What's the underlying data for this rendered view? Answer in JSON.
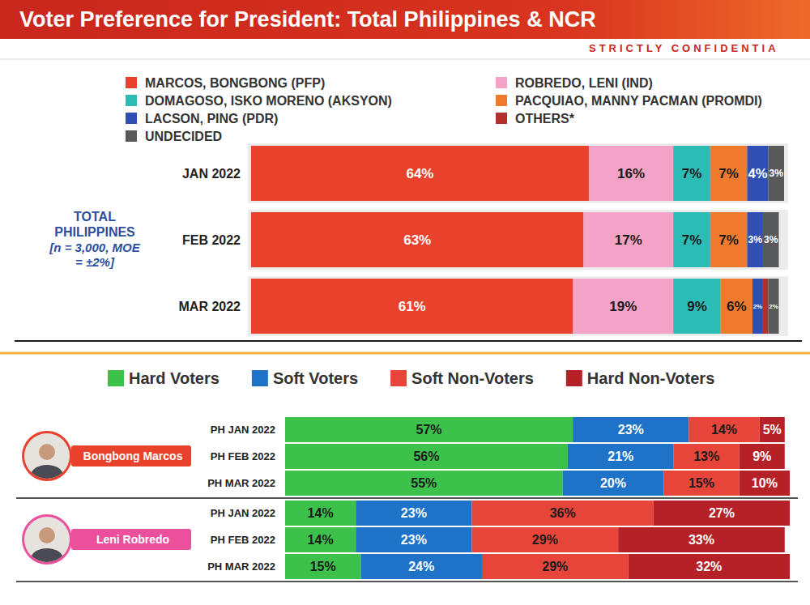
{
  "chart_data": [
    {
      "type": "bar",
      "orientation": "horizontal",
      "stacked": true,
      "data_labels": true,
      "legend": "top",
      "tick_labels": "y",
      "title": "Voter Preference for President: Total Philippines & NCR",
      "subtitle": "STRICTLY CONFIDENTIA",
      "annotations": [
        "TOTAL PHILIPPINES",
        "[n = 3,000, MOE = ±2%]"
      ],
      "categories": [
        "JAN 2022",
        "FEB 2022",
        "MAR 2022"
      ],
      "xlim": [
        0,
        101
      ],
      "series": [
        {
          "name": "MARCOS, BONGBONG (PFP)",
          "color": "#e8412c",
          "values": [
            64,
            63,
            61
          ],
          "value_labels": [
            "64%",
            "63%",
            "61%"
          ]
        },
        {
          "name": "ROBREDO, LENI (IND)",
          "color": "#f4a3c6",
          "values": [
            16,
            17,
            19
          ],
          "value_labels": [
            "16%",
            "17%",
            "19%"
          ]
        },
        {
          "name": "DOMAGOSO, ISKO MORENO (AKSYON)",
          "color": "#2cbcb6",
          "values": [
            7,
            7,
            9
          ],
          "value_labels": [
            "7%",
            "7%",
            "9%"
          ]
        },
        {
          "name": "PACQUIAO, MANNY PACMAN (PROMDI)",
          "color": "#f07a2c",
          "values": [
            7,
            7,
            6
          ],
          "value_labels": [
            "7%",
            "7%",
            "6%"
          ]
        },
        {
          "name": "LACSON, PING (PDR)",
          "color": "#2f4fb5",
          "values": [
            4,
            3,
            2
          ],
          "value_labels": [
            "4%",
            "3%",
            "2%"
          ]
        },
        {
          "name": "OTHERS*",
          "color": "#b3302c",
          "values": [
            0,
            0,
            1
          ],
          "value_labels": [
            null,
            null,
            null
          ]
        },
        {
          "name": "UNDECIDED",
          "color": "#58595b",
          "values": [
            3,
            3,
            2
          ],
          "value_labels": [
            "3%",
            "3%",
            "2%"
          ]
        }
      ]
    },
    {
      "type": "bar",
      "orientation": "horizontal",
      "stacked": true,
      "data_labels": true,
      "legend": "top",
      "tick_labels": "y",
      "title": "Bongbong Marcos",
      "categories": [
        "PH JAN 2022",
        "PH FEB 2022",
        "PH MAR 2022"
      ],
      "xlim": [
        0,
        100
      ],
      "series": [
        {
          "name": "Hard Voters",
          "color": "#3cc24a",
          "values": [
            57,
            56,
            55
          ],
          "value_labels": [
            "57%",
            "56%",
            "55%"
          ]
        },
        {
          "name": "Soft Voters",
          "color": "#1e73c8",
          "values": [
            23,
            21,
            20
          ],
          "value_labels": [
            "23%",
            "21%",
            "20%"
          ]
        },
        {
          "name": "Soft Non-Voters",
          "color": "#e8453a",
          "values": [
            14,
            13,
            15
          ],
          "value_labels": [
            "14%",
            "13%",
            "15%"
          ]
        },
        {
          "name": "Hard Non-Voters",
          "color": "#b52126",
          "values": [
            5,
            9,
            10
          ],
          "value_labels": [
            "5%",
            "9%",
            "10%"
          ]
        }
      ]
    },
    {
      "type": "bar",
      "orientation": "horizontal",
      "stacked": true,
      "data_labels": true,
      "tick_labels": "y",
      "title": "Leni Robredo",
      "categories": [
        "PH JAN 2022",
        "PH FEB 2022",
        "PH MAR 2022"
      ],
      "xlim": [
        0,
        100
      ],
      "series": [
        {
          "color": "#3cc24a",
          "values": [
            14,
            14,
            15
          ],
          "value_labels": [
            "14%",
            "14%",
            "15%"
          ]
        },
        {
          "color": "#1e73c8",
          "values": [
            23,
            23,
            24
          ],
          "value_labels": [
            "23%",
            "23%",
            "24%"
          ]
        },
        {
          "color": "#e8453a",
          "values": [
            36,
            29,
            29
          ],
          "value_labels": [
            "36%",
            "29%",
            "29%"
          ]
        },
        {
          "color": "#b52126",
          "values": [
            27,
            33,
            32
          ],
          "value_labels": [
            "27%",
            "33%",
            "32%"
          ]
        }
      ]
    }
  ]
}
